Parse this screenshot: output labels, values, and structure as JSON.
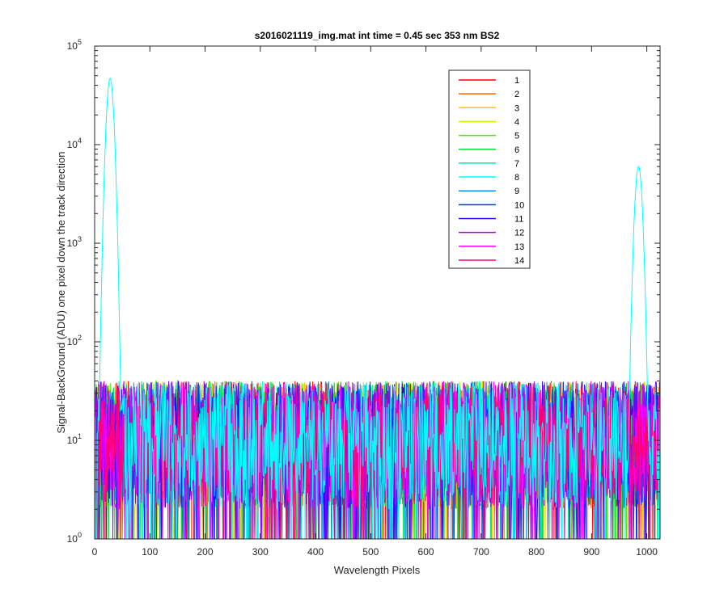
{
  "chart_data": {
    "type": "line",
    "title": "s2016021119_img.mat int time = 0.45 sec  353 nm BS2",
    "xlabel": "Wavelength Pixels",
    "ylabel": "Signal-BackGround (ADU) one pixel down the track direction",
    "xlim": [
      0,
      1024
    ],
    "ylim": [
      1,
      100000
    ],
    "yscale": "log",
    "grid": false,
    "legend_position": "top-right",
    "x_ticks": [
      "0",
      "100",
      "200",
      "300",
      "400",
      "500",
      "600",
      "700",
      "800",
      "900",
      "1000"
    ],
    "x_tick_values": [
      0,
      100,
      200,
      300,
      400,
      500,
      600,
      700,
      800,
      900,
      1000
    ],
    "y_tick_values": [
      1,
      10,
      100,
      1000,
      10000,
      100000
    ],
    "y_tick_exponents": [
      "0",
      "1",
      "2",
      "3",
      "4",
      "5"
    ],
    "y_tick_base": "10",
    "noise_range": [
      2,
      40
    ],
    "series": [
      {
        "name": "1",
        "color": "#ff0000"
      },
      {
        "name": "2",
        "color": "#ff6a00"
      },
      {
        "name": "3",
        "color": "#ffc800"
      },
      {
        "name": "4",
        "color": "#c8f000"
      },
      {
        "name": "5",
        "color": "#5ae600"
      },
      {
        "name": "6",
        "color": "#00dc32"
      },
      {
        "name": "7",
        "color": "#00e696"
      },
      {
        "name": "8",
        "color": "#00ffff",
        "peaks": [
          {
            "x": 28,
            "y": 47000
          },
          {
            "x": 985,
            "y": 6000
          }
        ]
      },
      {
        "name": "9",
        "color": "#0096ff"
      },
      {
        "name": "10",
        "color": "#0032ff"
      },
      {
        "name": "11",
        "color": "#3200ff"
      },
      {
        "name": "12",
        "color": "#9600ff"
      },
      {
        "name": "13",
        "color": "#ff00ff"
      },
      {
        "name": "14",
        "color": "#ff0078"
      }
    ]
  }
}
